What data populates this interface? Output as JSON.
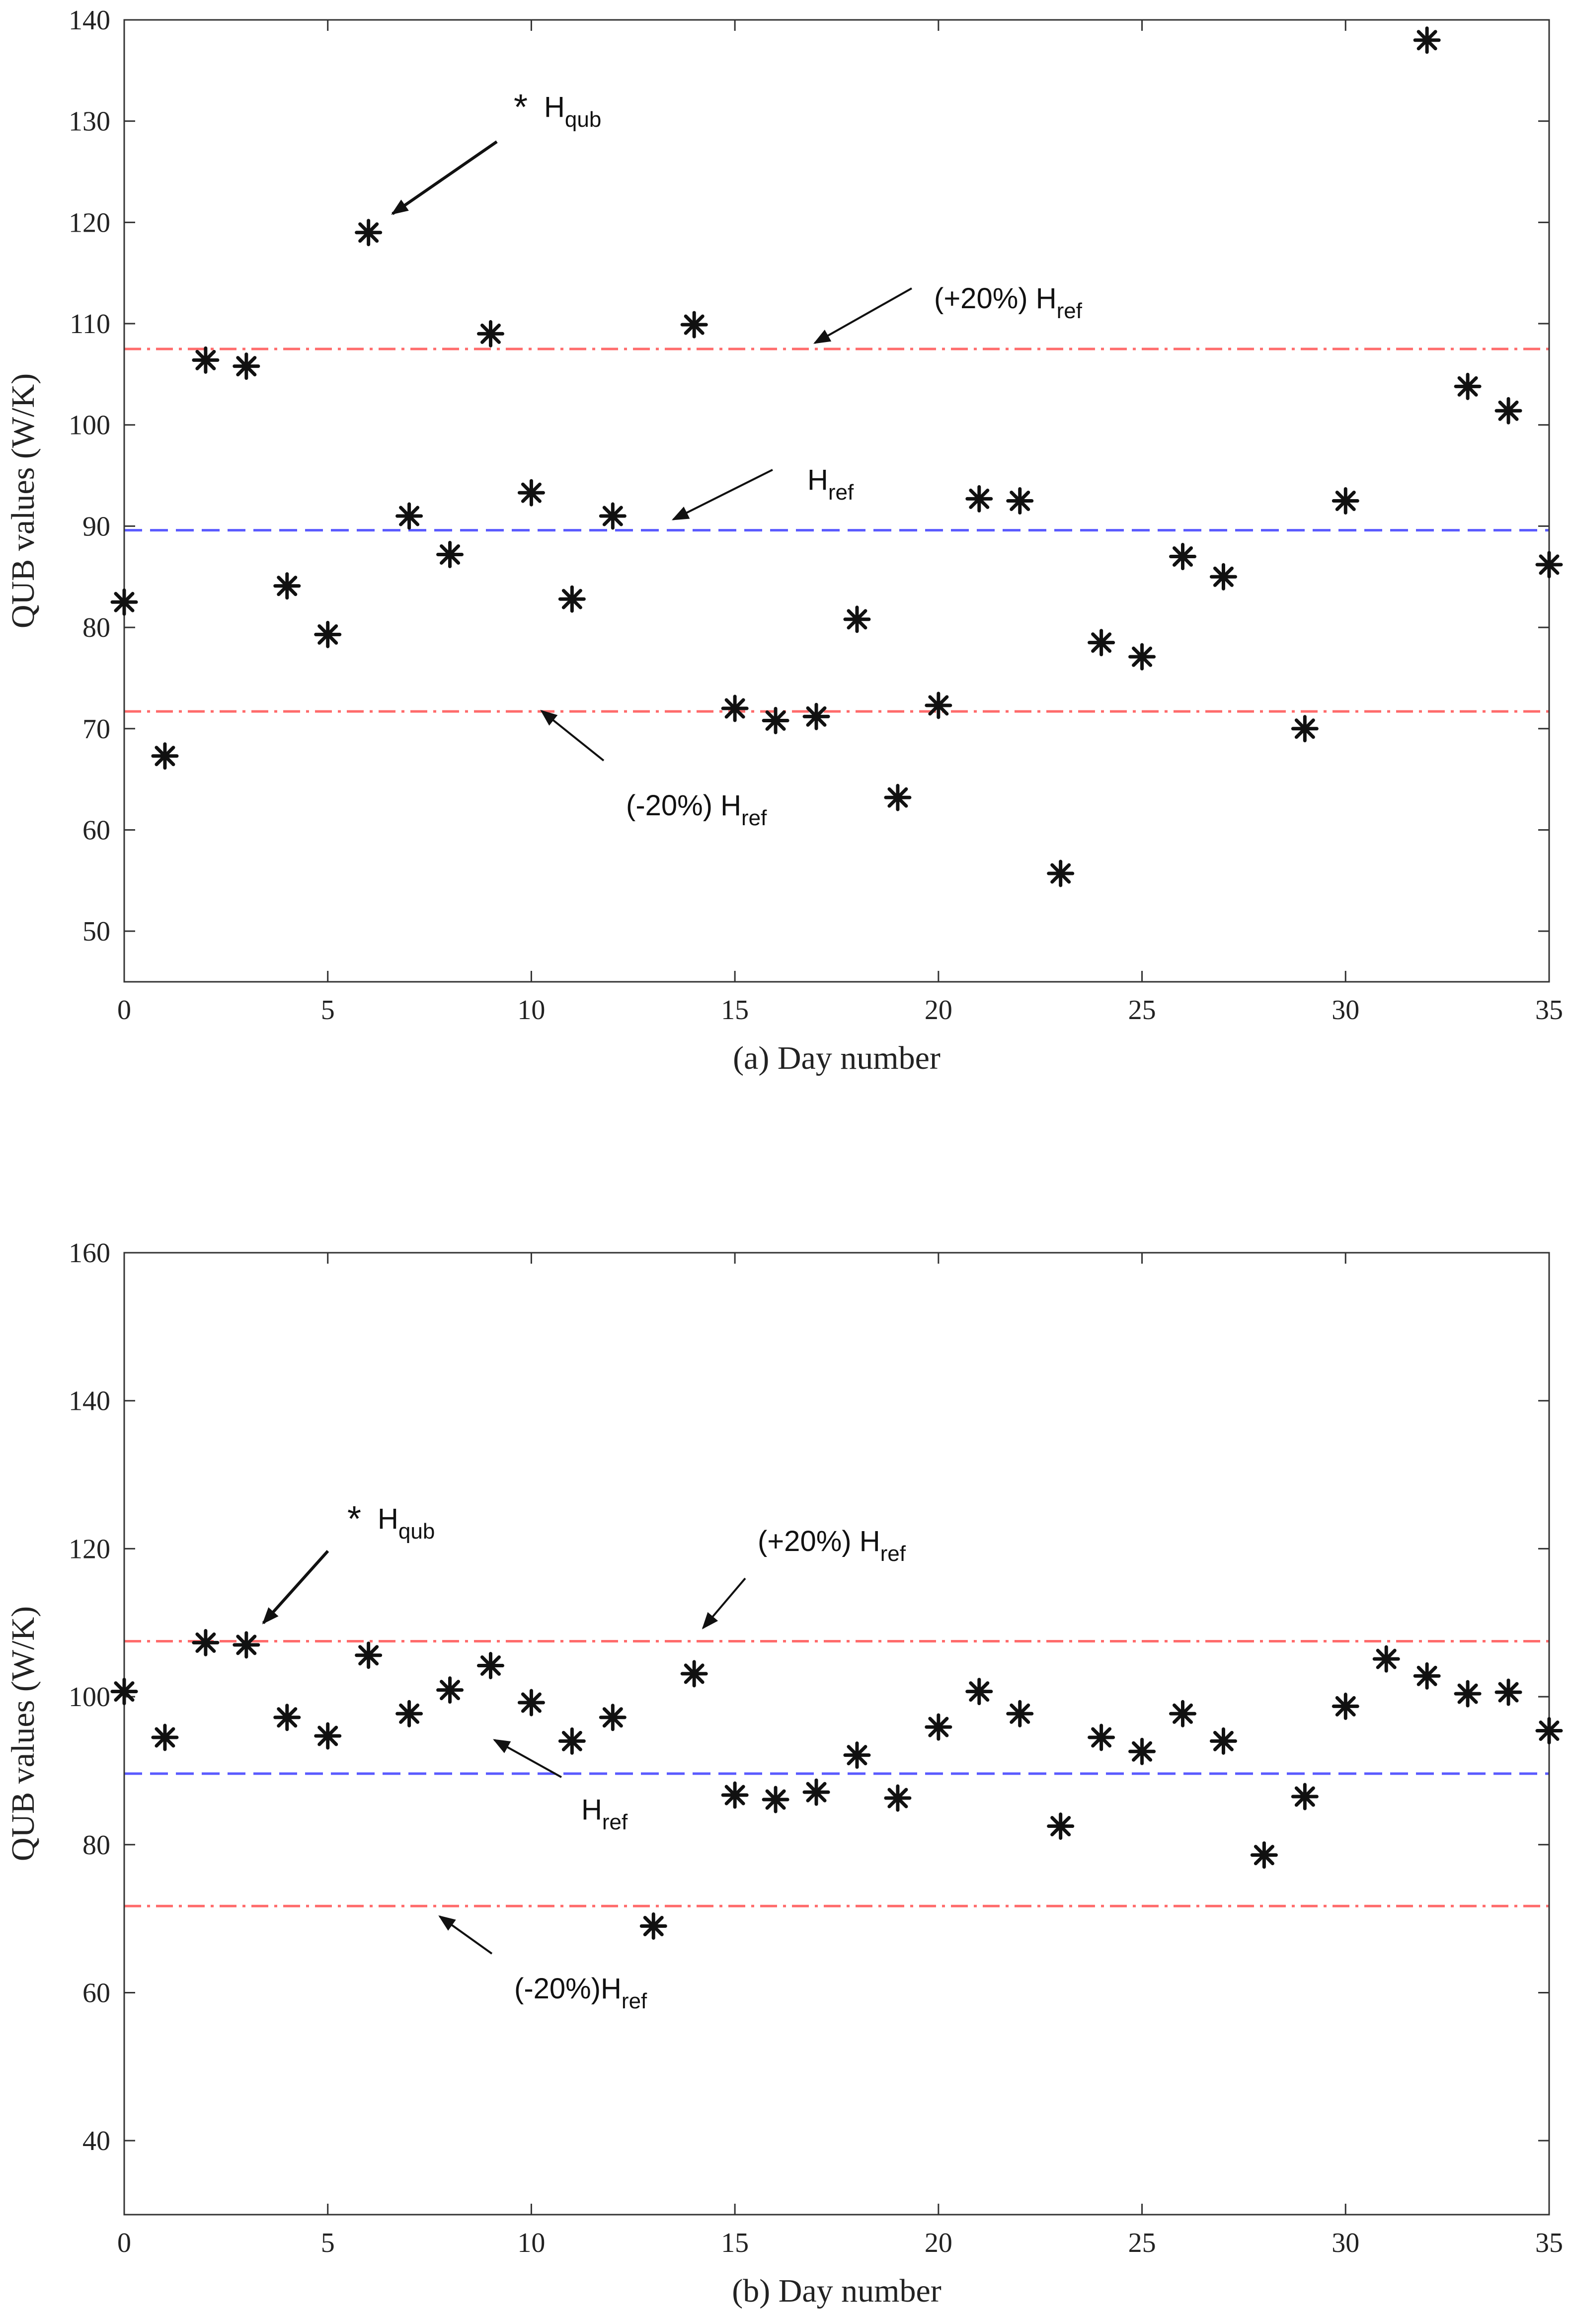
{
  "chart_data": [
    {
      "id": "a",
      "type": "scatter",
      "xlabel": "(a) Day number",
      "ylabel": "QUB values (W/K)",
      "xlim": [
        0,
        35
      ],
      "ylim": [
        45,
        140
      ],
      "xticks": [
        0,
        5,
        10,
        15,
        20,
        25,
        30,
        35
      ],
      "yticks": [
        50,
        60,
        70,
        80,
        90,
        100,
        110,
        120,
        130,
        140
      ],
      "grid": false,
      "series": [
        {
          "name": "H_qub",
          "marker": "*",
          "x": [
            0,
            1,
            2,
            3,
            4,
            5,
            6,
            7,
            8,
            9,
            10,
            11,
            12,
            14,
            15,
            16,
            17,
            18,
            19,
            20,
            21,
            22,
            23,
            24,
            25,
            26,
            27,
            29,
            30,
            32,
            33,
            34,
            35
          ],
          "y": [
            82.5,
            67.3,
            106.4,
            105.8,
            84.1,
            79.3,
            119,
            91,
            87.2,
            109,
            93.3,
            82.8,
            91,
            109.9,
            72,
            70.8,
            71.2,
            80.8,
            63.2,
            72.3,
            92.7,
            92.5,
            55.7,
            78.5,
            77.1,
            87,
            85,
            70,
            92.5,
            138,
            103.8,
            101.4,
            86.2
          ]
        }
      ],
      "reference_lines": [
        {
          "name": "H_ref",
          "y": 89.6,
          "style": "dashed",
          "color": "#5a5aff"
        },
        {
          "name": "(+20%) H_ref",
          "y": 107.5,
          "style": "dashdot",
          "color": "#ff6b6b"
        },
        {
          "name": "(-20%) H_ref",
          "y": 71.7,
          "style": "dashdot",
          "color": "#ff6b6b"
        }
      ],
      "annotations": [
        {
          "key": "qub",
          "star": "*",
          "main": "H",
          "sub": "qub"
        },
        {
          "key": "plus",
          "main": "(+20%) H",
          "sub": "ref"
        },
        {
          "key": "ref",
          "main": "H",
          "sub": "ref"
        },
        {
          "key": "minus",
          "main": "(-20%) H",
          "sub": "ref"
        }
      ]
    },
    {
      "id": "b",
      "type": "scatter",
      "xlabel": "(b) Day number",
      "ylabel": "QUB values (W/K)",
      "xlim": [
        0,
        35
      ],
      "ylim": [
        30,
        160
      ],
      "xticks": [
        0,
        5,
        10,
        15,
        20,
        25,
        30,
        35
      ],
      "yticks": [
        40,
        60,
        80,
        100,
        120,
        140,
        160
      ],
      "grid": false,
      "series": [
        {
          "name": "H_qub",
          "marker": "*",
          "x": [
            0,
            1,
            2,
            3,
            4,
            5,
            6,
            7,
            8,
            9,
            10,
            11,
            12,
            13,
            14,
            15,
            16,
            17,
            18,
            19,
            20,
            21,
            22,
            23,
            24,
            25,
            26,
            27,
            28,
            29,
            30,
            31,
            32,
            33,
            34,
            35
          ],
          "y": [
            100.7,
            94.5,
            107.3,
            107,
            97.2,
            94.7,
            105.6,
            97.7,
            100.9,
            104.2,
            99.2,
            94,
            97.2,
            69,
            103.1,
            86.7,
            86.1,
            87.1,
            92.1,
            86.3,
            95.9,
            100.7,
            97.7,
            82.5,
            94.5,
            92.6,
            97.7,
            94,
            78.6,
            86.5,
            98.7,
            105.1,
            102.8,
            100.4,
            100.6,
            95.4
          ]
        }
      ],
      "reference_lines": [
        {
          "name": "H_ref",
          "y": 89.6,
          "style": "dashed",
          "color": "#5a5aff"
        },
        {
          "name": "(+20%) H_ref",
          "y": 107.5,
          "style": "dashdot",
          "color": "#ff6b6b"
        },
        {
          "name": "(-20%) H_ref",
          "y": 71.7,
          "style": "dashdot",
          "color": "#ff6b6b"
        }
      ],
      "annotations": [
        {
          "key": "qub",
          "star": "*",
          "main": "H",
          "sub": "qub"
        },
        {
          "key": "plus",
          "main": "(+20%) H",
          "sub": "ref"
        },
        {
          "key": "ref",
          "main": "H",
          "sub": "ref"
        },
        {
          "key": "minus",
          "main": "(-20%)H",
          "sub": "ref"
        }
      ]
    }
  ]
}
